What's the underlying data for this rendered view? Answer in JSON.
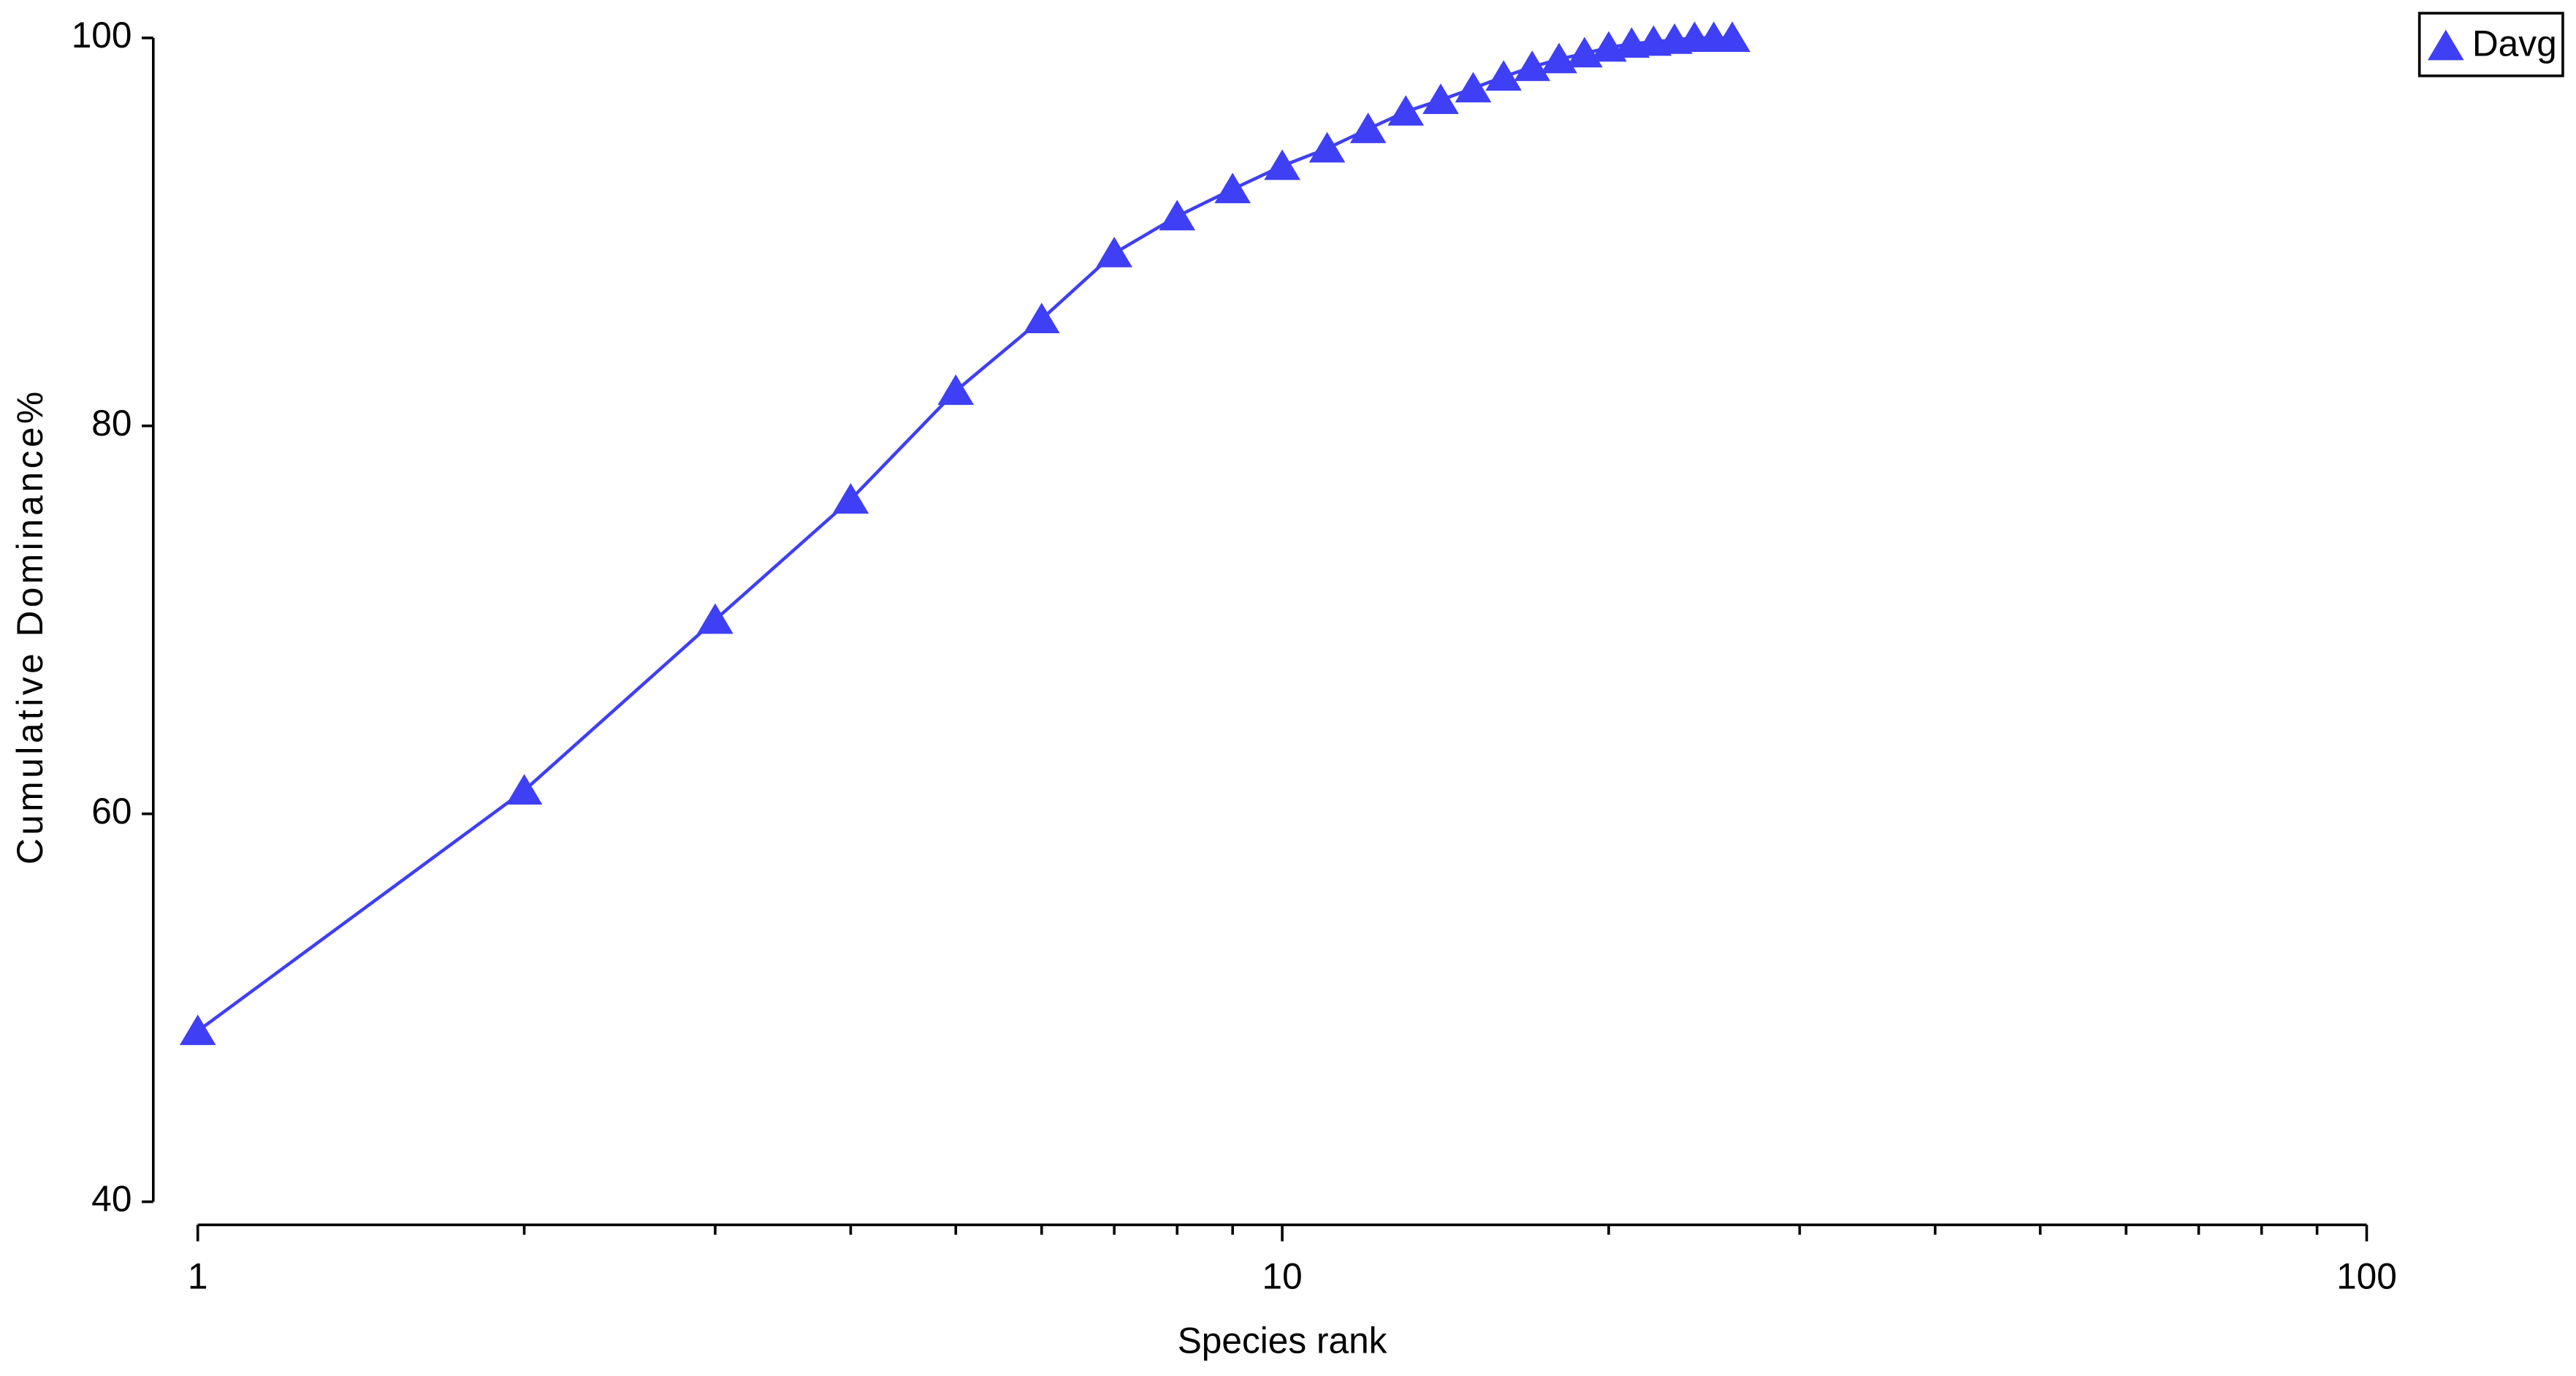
{
  "chart_data": {
    "type": "line",
    "x_label": "Species rank",
    "y_label": "Cumulative Dominance%",
    "x": [
      1,
      2,
      3,
      4,
      5,
      6,
      7,
      8,
      9,
      10,
      11,
      12,
      13,
      14,
      15,
      16,
      17,
      18,
      19,
      20,
      21,
      22,
      23,
      24,
      25,
      26
    ],
    "series": [
      {
        "name": "Davg",
        "color": "#3f3ff5",
        "values": [
          48.8,
          61.2,
          70.0,
          76.2,
          81.8,
          85.5,
          88.9,
          90.8,
          92.2,
          93.4,
          94.3,
          95.3,
          96.2,
          96.8,
          97.4,
          98.0,
          98.5,
          98.9,
          99.2,
          99.5,
          99.7,
          99.8,
          99.9,
          100,
          100,
          100
        ]
      }
    ],
    "xscale": "log",
    "xlim": [
      1,
      100
    ],
    "xticks": [
      1,
      10,
      100
    ],
    "xminorticks": [
      2,
      3,
      4,
      5,
      6,
      7,
      8,
      9,
      20,
      30,
      40,
      50,
      60,
      70,
      80,
      90
    ],
    "ylim": [
      40,
      100
    ],
    "yticks": [
      40,
      60,
      80,
      100
    ],
    "legend": "upper right"
  }
}
